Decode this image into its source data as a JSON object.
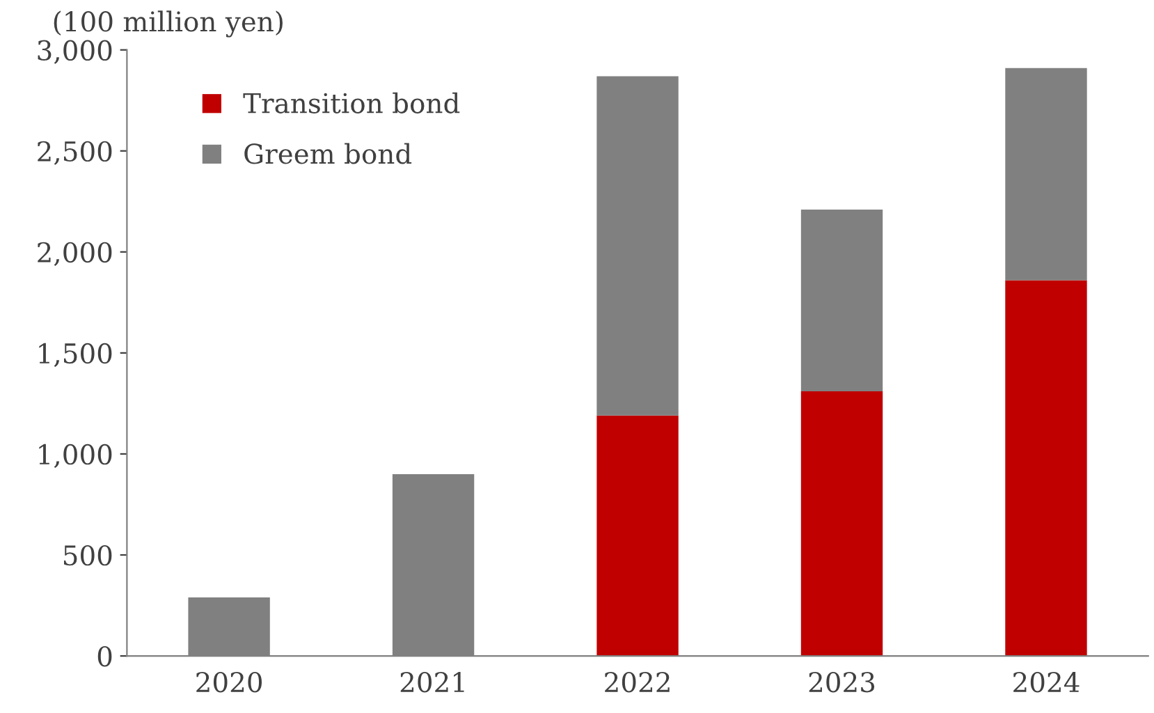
{
  "chart_data": {
    "type": "bar",
    "stacked": true,
    "ylabel": "(100 million yen)",
    "categories": [
      "2020",
      "2021",
      "2022",
      "2023",
      "2024"
    ],
    "series": [
      {
        "name": "Transition bond",
        "color": "#c00000",
        "values": [
          0,
          0,
          1190,
          1310,
          1860
        ]
      },
      {
        "name": "Greem bond",
        "color": "#808080",
        "values": [
          290,
          900,
          1680,
          900,
          1050
        ]
      }
    ],
    "ylim": [
      0,
      3000
    ],
    "yticks": [
      {
        "value": 0,
        "label": "0"
      },
      {
        "value": 500,
        "label": "500"
      },
      {
        "value": 1000,
        "label": "1,000"
      },
      {
        "value": 1500,
        "label": "1,500"
      },
      {
        "value": 2000,
        "label": "2,000"
      },
      {
        "value": 2500,
        "label": "2,500"
      },
      {
        "value": 3000,
        "label": "3,000"
      }
    ],
    "grid": false,
    "legend": "top left"
  }
}
